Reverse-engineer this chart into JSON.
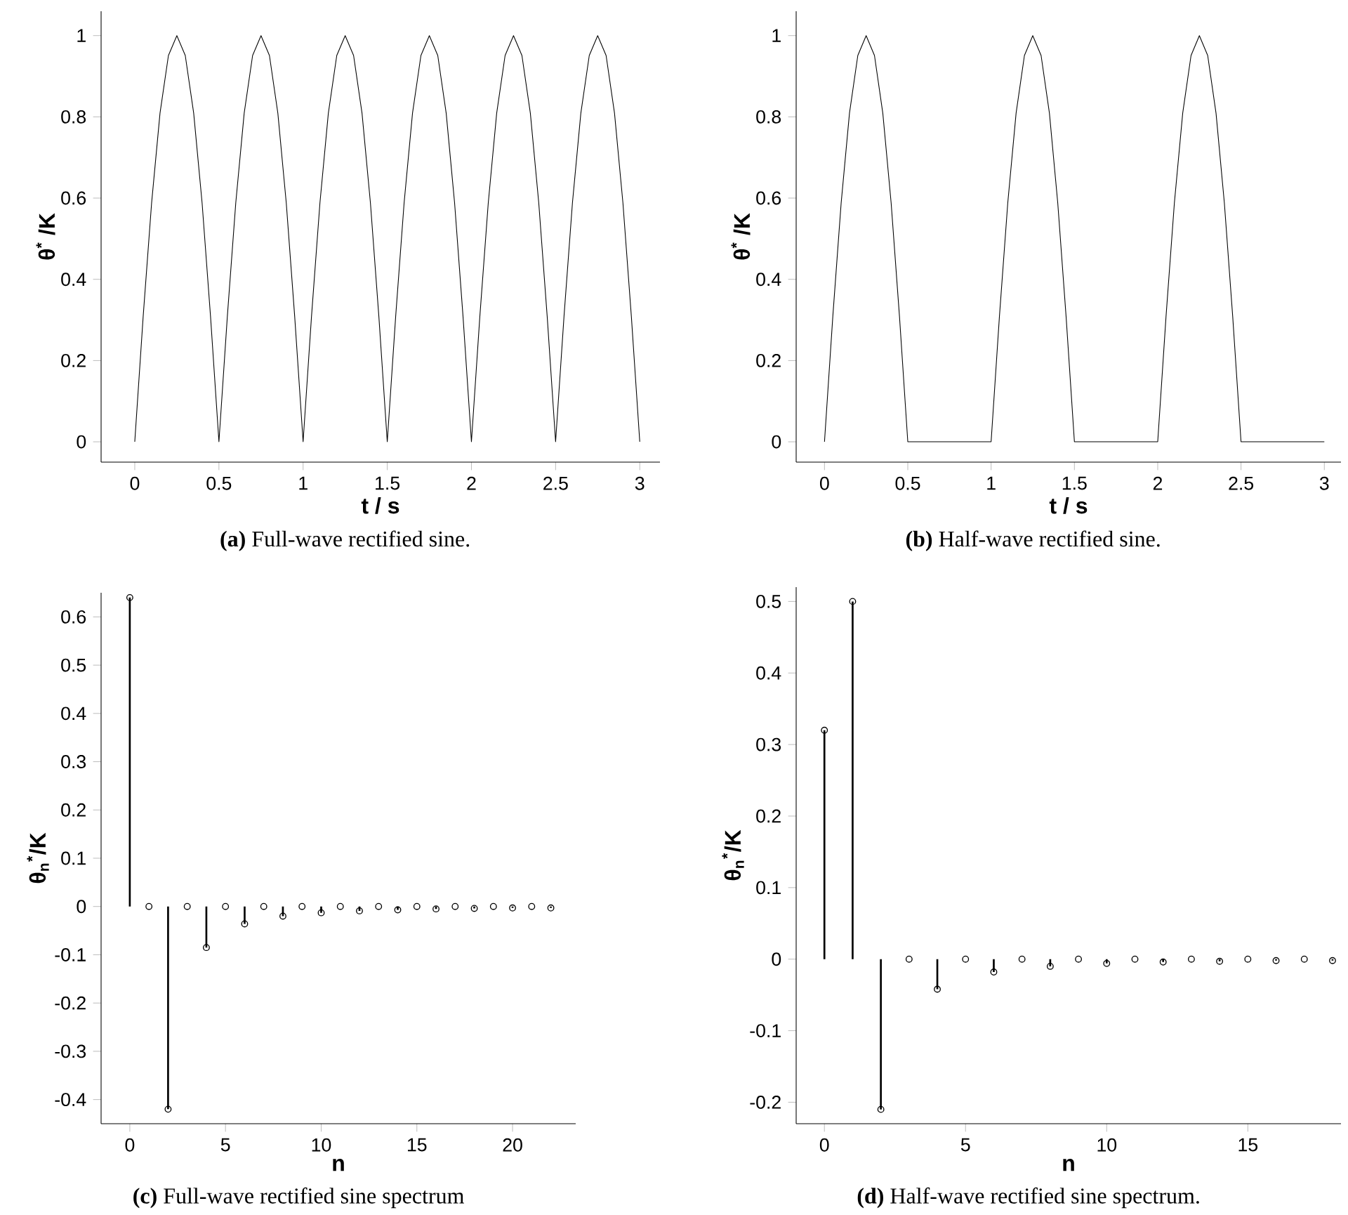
{
  "chart_data": [
    {
      "type": "line",
      "xlabel": "t / s",
      "ylabel": "θ$^{*}$ /K",
      "annotations": [
        "**(a)** Full-wave rectified sine."
      ],
      "xlim": [
        -0.2,
        3.12
      ],
      "ylim": [
        -0.05,
        1.06
      ],
      "xticks": [
        0,
        0.5,
        1,
        1.5,
        2,
        2.5,
        3
      ],
      "yticks": [
        0,
        0.2,
        0.4,
        0.6,
        0.8,
        1
      ],
      "x": [
        0,
        0.05,
        0.1,
        0.15,
        0.2,
        0.25,
        0.3,
        0.35,
        0.4,
        0.45,
        0.5,
        0.55,
        0.6,
        0.65,
        0.7,
        0.75,
        0.8,
        0.85,
        0.9,
        0.95,
        1,
        1.05,
        1.1,
        1.15,
        1.2,
        1.25,
        1.3,
        1.35,
        1.4,
        1.45,
        1.5,
        1.55,
        1.6,
        1.65,
        1.7,
        1.75,
        1.8,
        1.85,
        1.9,
        1.95,
        2,
        2.05,
        2.1,
        2.15,
        2.2,
        2.25,
        2.3,
        2.35,
        2.4,
        2.45,
        2.5,
        2.55,
        2.6,
        2.65,
        2.7,
        2.75,
        2.8,
        2.85,
        2.9,
        2.95,
        3
      ],
      "series": [
        {
          "color": "#000000",
          "values": [
            0,
            0.309,
            0.588,
            0.809,
            0.951,
            1,
            0.951,
            0.809,
            0.588,
            0.309,
            0,
            0.309,
            0.588,
            0.809,
            0.951,
            1,
            0.951,
            0.809,
            0.588,
            0.309,
            0,
            0.309,
            0.588,
            0.809,
            0.951,
            1,
            0.951,
            0.809,
            0.588,
            0.309,
            0,
            0.309,
            0.588,
            0.809,
            0.951,
            1,
            0.951,
            0.809,
            0.588,
            0.309,
            0,
            0.309,
            0.588,
            0.809,
            0.951,
            1,
            0.951,
            0.809,
            0.588,
            0.309,
            0,
            0.309,
            0.588,
            0.809,
            0.951,
            1,
            0.951,
            0.809,
            0.588,
            0.309,
            0
          ]
        }
      ]
    },
    {
      "type": "line",
      "xlabel": "t / s",
      "ylabel": "θ$^{*}$ /K",
      "annotations": [
        "**(b)** Half-wave rectified sine."
      ],
      "xlim": [
        -0.17,
        3.1
      ],
      "ylim": [
        -0.05,
        1.06
      ],
      "xticks": [
        0,
        0.5,
        1,
        1.5,
        2,
        2.5,
        3
      ],
      "yticks": [
        0,
        0.2,
        0.4,
        0.6,
        0.8,
        1
      ],
      "x": [
        0,
        0.05,
        0.1,
        0.15,
        0.2,
        0.25,
        0.3,
        0.35,
        0.4,
        0.45,
        0.5,
        1,
        1.05,
        1.1,
        1.15,
        1.2,
        1.25,
        1.3,
        1.35,
        1.4,
        1.45,
        1.5,
        2,
        2.05,
        2.1,
        2.15,
        2.2,
        2.25,
        2.3,
        2.35,
        2.4,
        2.45,
        2.5,
        3
      ],
      "series": [
        {
          "color": "#000000",
          "values": [
            0,
            0.309,
            0.588,
            0.809,
            0.951,
            1,
            0.951,
            0.809,
            0.588,
            0.309,
            0,
            0,
            0.309,
            0.588,
            0.809,
            0.951,
            1,
            0.951,
            0.809,
            0.588,
            0.309,
            0,
            0,
            0.309,
            0.588,
            0.809,
            0.951,
            1,
            0.951,
            0.809,
            0.588,
            0.309,
            0,
            0
          ]
        }
      ]
    },
    {
      "type": "lollipop",
      "marker": "circle",
      "xlabel": "n",
      "ylabel": "θ$_{n}$$^{*}$/K",
      "annotations": [
        "**(c)** Full-wave rectified sine spectrum"
      ],
      "xlim": [
        -1.5,
        23.3
      ],
      "ylim": [
        -0.45,
        0.65
      ],
      "xticks": [
        0,
        5,
        10,
        15,
        20
      ],
      "yticks": [
        -0.4,
        -0.3,
        -0.2,
        -0.1,
        0,
        0.1,
        0.2,
        0.3,
        0.4,
        0.5,
        0.6
      ],
      "x": [
        0,
        1,
        2,
        3,
        4,
        5,
        6,
        7,
        8,
        9,
        10,
        11,
        12,
        13,
        14,
        15,
        16,
        17,
        18,
        19,
        20,
        21,
        22
      ],
      "series": [
        {
          "color": "#000000",
          "values": [
            0.64,
            0,
            -0.42,
            0,
            -0.085,
            0,
            -0.036,
            0,
            -0.02,
            0,
            -0.013,
            0,
            -0.009,
            0,
            -0.007,
            0,
            -0.005,
            0,
            -0.004,
            0,
            -0.003,
            0,
            -0.003
          ]
        }
      ]
    },
    {
      "type": "lollipop",
      "marker": "circle",
      "xlabel": "n",
      "ylabel": "θ$_{n}$$^{*}$/K",
      "annotations": [
        "**(d)** Half-wave rectified sine spectrum."
      ],
      "xlim": [
        -1,
        18.3
      ],
      "ylim": [
        -0.23,
        0.52
      ],
      "xticks": [
        0,
        5,
        10,
        15
      ],
      "yticks": [
        -0.2,
        -0.1,
        0,
        0.1,
        0.2,
        0.3,
        0.4,
        0.5
      ],
      "x": [
        0,
        1,
        2,
        3,
        4,
        5,
        6,
        7,
        8,
        9,
        10,
        11,
        12,
        13,
        14,
        15,
        16,
        17,
        18
      ],
      "series": [
        {
          "color": "#000000",
          "values": [
            0.32,
            0.5,
            -0.21,
            0,
            -0.042,
            0,
            -0.018,
            0,
            -0.01,
            0,
            -0.006,
            0,
            -0.004,
            0,
            -0.003,
            0,
            -0.002,
            0,
            -0.002
          ]
        }
      ]
    }
  ]
}
